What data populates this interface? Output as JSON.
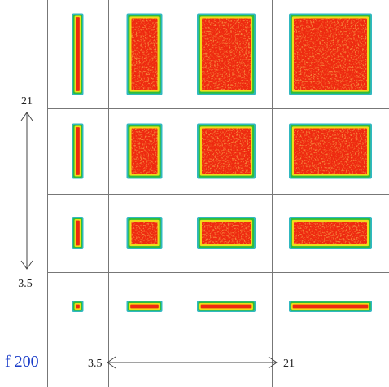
{
  "figure": {
    "label": "f 200",
    "row_axis": {
      "top": "21",
      "bottom": "3.5"
    },
    "col_axis": {
      "left": "3.5",
      "right": "21"
    },
    "colors": {
      "core": "#ee2a10",
      "core_speckle": "#f5a01c",
      "mid": "#f0dc18",
      "edge": "#2dbd3a",
      "outer": "#30b8c0",
      "grid_line": "#777777",
      "label": "#1a3cc8"
    }
  }
}
